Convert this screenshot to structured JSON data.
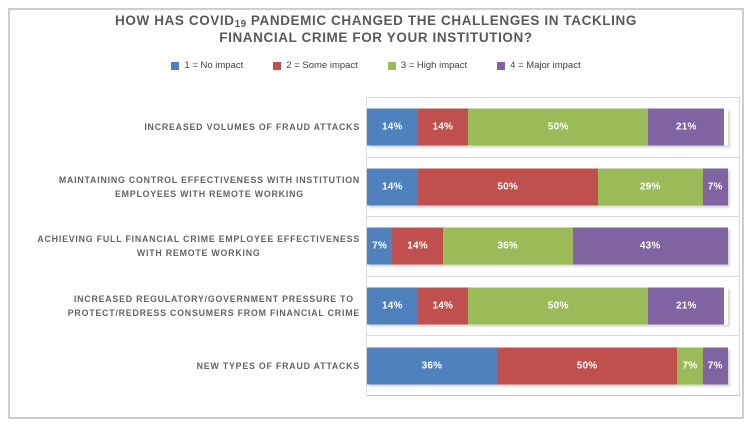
{
  "window": {
    "background": "#ffffff",
    "border_color": "#c9ced7"
  },
  "title": {
    "line1_pre": "HOW HAS COVID",
    "line1_sub": "19",
    "line1_post": " PANDEMIC CHANGED THE CHALLENGES IN TACKLING",
    "line2": "FINANCIAL CRIME FOR YOUR INSTITUTION?"
  },
  "chart_data": {
    "type": "bar",
    "stacked": true,
    "orientation": "horizontal",
    "title": "HOW HAS COVID19 PANDEMIC CHANGED THE CHALLENGES IN TACKLING FINANCIAL CRIME FOR YOUR INSTITUTION?",
    "xlabel": "",
    "ylabel": "",
    "xlim": [
      0,
      100
    ],
    "value_suffix": "%",
    "legend_position": "top",
    "grid": "category-separators",
    "gridline_color": "#d9d9d9",
    "axis_line_color": "#bfbfbf",
    "data_label_color": "#ffffff",
    "categories": [
      "INCREASED VOLUMES OF FRAUD ATTACKS",
      "MAINTAINING CONTROL EFFECTIVENESS WITH INSTITUTION EMPLOYEES WITH REMOTE WORKING",
      "ACHIEVING FULL FINANCIAL CRIME EMPLOYEE EFFECTIVENESS WITH REMOTE WORKING",
      "INCREASED REGULATORY/GOVERNMENT PRESSURE TO PROTECT/REDRESS CONSUMERS FROM FINANCIAL CRIME",
      "NEW TYPES OF FRAUD ATTACKS"
    ],
    "category_lines": [
      [
        "INCREASED VOLUMES OF FRAUD ATTACKS"
      ],
      [
        "MAINTAINING CONTROL EFFECTIVENESS WITH INSTITUTION",
        "EMPLOYEES WITH REMOTE WORKING"
      ],
      [
        "ACHIEVING FULL FINANCIAL CRIME EMPLOYEE EFFECTIVENESS",
        "WITH REMOTE WORKING"
      ],
      [
        "INCREASED REGULATORY/GOVERNMENT PRESSURE TO",
        "PROTECT/REDRESS CONSUMERS FROM FINANCIAL CRIME"
      ],
      [
        "NEW TYPES OF FRAUD ATTACKS"
      ]
    ],
    "series": [
      {
        "name": "1 = No impact",
        "color": "#4F81BD",
        "values": [
          14,
          14,
          7,
          14,
          36
        ]
      },
      {
        "name": "2 = Some impact",
        "color": "#C0504D",
        "values": [
          14,
          50,
          14,
          14,
          50
        ]
      },
      {
        "name": "3 = High impact",
        "color": "#9BBB59",
        "values": [
          50,
          29,
          36,
          50,
          7
        ]
      },
      {
        "name": "4 = Major impact",
        "color": "#8064A2",
        "values": [
          21,
          7,
          43,
          21,
          7
        ]
      }
    ],
    "data_labels": [
      [
        "14%",
        "14%",
        "50%",
        "21%"
      ],
      [
        "14%",
        "50%",
        "29%",
        "7%"
      ],
      [
        "7%",
        "14%",
        "36%",
        "43%"
      ],
      [
        "14%",
        "14%",
        "50%",
        "21%"
      ],
      [
        "36%",
        "50%",
        "7%",
        "7%"
      ]
    ]
  }
}
